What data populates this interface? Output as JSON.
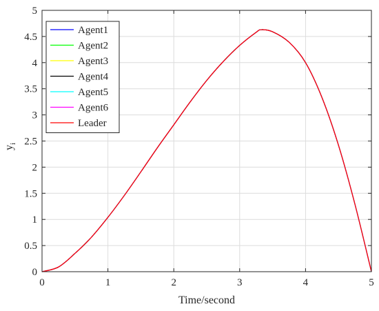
{
  "chart_data": {
    "type": "line",
    "title": "",
    "xlabel": "Time/second",
    "ylabel": "y",
    "ylabel_subscript": "i",
    "xlim": [
      0,
      5
    ],
    "ylim": [
      0,
      5
    ],
    "x_ticks": [
      "0",
      "1",
      "2",
      "3",
      "4",
      "5"
    ],
    "y_ticks": [
      "0",
      "0.5",
      "1",
      "1.5",
      "2",
      "2.5",
      "3",
      "3.5",
      "4",
      "4.5",
      "5"
    ],
    "grid": true,
    "legend_position": "top-left",
    "x": [
      0,
      0.25,
      0.5,
      0.75,
      1.0,
      1.25,
      1.5,
      1.75,
      2.0,
      2.25,
      2.5,
      2.75,
      3.0,
      3.25,
      3.33,
      3.5,
      3.75,
      4.0,
      4.25,
      4.5,
      4.75,
      5.0
    ],
    "series": [
      {
        "name": "Agent1",
        "color": "#0000ff",
        "values": [
          0,
          0.09,
          0.35,
          0.66,
          1.04,
          1.46,
          1.91,
          2.37,
          2.81,
          3.25,
          3.66,
          4.02,
          4.33,
          4.58,
          4.63,
          4.59,
          4.39,
          4.0,
          3.33,
          2.42,
          1.29,
          0
        ]
      },
      {
        "name": "Agent2",
        "color": "#00ff00",
        "values": [
          0,
          0.09,
          0.35,
          0.66,
          1.04,
          1.46,
          1.91,
          2.37,
          2.81,
          3.25,
          3.66,
          4.02,
          4.33,
          4.58,
          4.63,
          4.59,
          4.39,
          4.0,
          3.33,
          2.42,
          1.29,
          0
        ]
      },
      {
        "name": "Agent3",
        "color": "#ffff00",
        "values": [
          0,
          0.09,
          0.35,
          0.66,
          1.04,
          1.46,
          1.91,
          2.37,
          2.81,
          3.25,
          3.66,
          4.02,
          4.33,
          4.58,
          4.63,
          4.59,
          4.39,
          4.0,
          3.33,
          2.42,
          1.29,
          0
        ]
      },
      {
        "name": "Agent4",
        "color": "#000000",
        "values": [
          0,
          0.09,
          0.35,
          0.66,
          1.04,
          1.46,
          1.91,
          2.37,
          2.81,
          3.25,
          3.66,
          4.02,
          4.33,
          4.58,
          4.63,
          4.59,
          4.39,
          4.0,
          3.33,
          2.42,
          1.29,
          0
        ]
      },
      {
        "name": "Agent5",
        "color": "#00ffff",
        "values": [
          0,
          0.09,
          0.35,
          0.66,
          1.04,
          1.46,
          1.91,
          2.37,
          2.81,
          3.25,
          3.66,
          4.02,
          4.33,
          4.58,
          4.63,
          4.59,
          4.39,
          4.0,
          3.33,
          2.42,
          1.29,
          0
        ]
      },
      {
        "name": "Agent6",
        "color": "#ff00ff",
        "values": [
          0,
          0.09,
          0.35,
          0.66,
          1.04,
          1.46,
          1.91,
          2.37,
          2.81,
          3.25,
          3.66,
          4.02,
          4.33,
          4.58,
          4.63,
          4.59,
          4.39,
          4.0,
          3.33,
          2.42,
          1.29,
          0
        ]
      },
      {
        "name": "Leader",
        "color": "#ff0000",
        "values": [
          0,
          0.09,
          0.35,
          0.66,
          1.04,
          1.46,
          1.91,
          2.37,
          2.81,
          3.25,
          3.66,
          4.02,
          4.33,
          4.58,
          4.63,
          4.59,
          4.39,
          4.0,
          3.33,
          2.42,
          1.29,
          0
        ]
      }
    ]
  }
}
